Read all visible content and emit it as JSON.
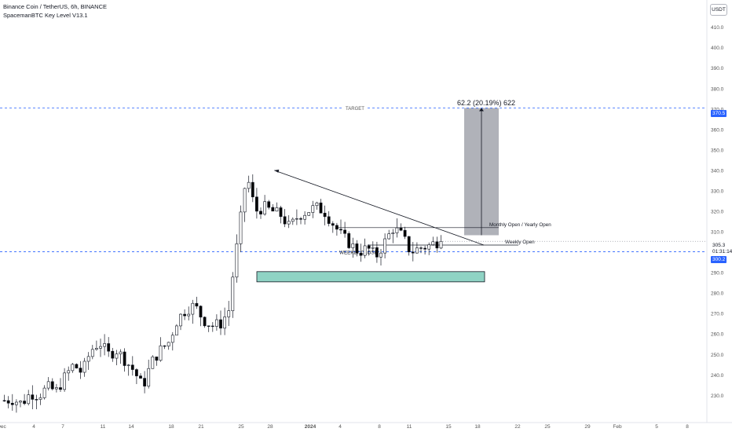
{
  "legend": {
    "title": "Binance Coin / TetherUS, 6h, BINANCE",
    "indicator": "SpacemanBTC Key Level V13.1"
  },
  "currency_button": "USDT",
  "price_labels": {
    "current_price": "305.3",
    "countdown": "01:31:14",
    "target": "370.5",
    "blue_line": "300.2"
  },
  "annotations": {
    "target": "TARGET",
    "weekly_close": "WEEKLY CLOSE",
    "monthly_yearly_open": "Monthly Open / Yearly Open",
    "weekly_open": "Weekly Open",
    "measure": "62.2 (20.19%) 622"
  },
  "colors": {
    "up_candle": "#ffffff",
    "down_candle": "#000000",
    "target_line": "#2962ff",
    "support_zone": "#8fd3c4",
    "projection_box": "#9598a1",
    "label_blue": "#2962ff"
  },
  "chart_data": {
    "type": "candlestick",
    "symbol": "BNBUSDT",
    "interval": "6h",
    "y_ticks": [
      230,
      240,
      250,
      260,
      270,
      280,
      290,
      300,
      310,
      320,
      330,
      340,
      350,
      360,
      370,
      380,
      390,
      400,
      410
    ],
    "x_ticks": [
      "Dec",
      "4",
      "7",
      "11",
      "14",
      "18",
      "21",
      "25",
      "28",
      "2024",
      "4",
      "8",
      "11",
      "15",
      "18",
      "22",
      "25",
      "29",
      "Feb",
      "5",
      "8"
    ],
    "ylim": [
      221,
      421
    ],
    "series_path": [
      [
        0,
        227.5
      ],
      [
        2,
        228
      ],
      [
        4,
        226
      ],
      [
        6,
        231
      ],
      [
        8,
        230
      ],
      [
        10,
        234
      ],
      [
        12,
        232
      ],
      [
        14,
        239
      ],
      [
        16,
        245
      ],
      [
        18,
        241
      ],
      [
        20,
        252
      ],
      [
        22,
        256
      ],
      [
        24,
        250
      ],
      [
        26,
        252
      ],
      [
        28,
        247
      ],
      [
        30,
        242
      ],
      [
        32,
        234
      ],
      [
        34,
        246
      ],
      [
        36,
        252
      ],
      [
        38,
        256
      ],
      [
        40,
        267
      ],
      [
        42,
        272
      ],
      [
        44,
        274
      ],
      [
        46,
        267
      ],
      [
        48,
        264
      ],
      [
        50,
        265
      ],
      [
        52,
        272
      ],
      [
        53,
        292
      ],
      [
        54,
        306
      ],
      [
        55,
        322
      ],
      [
        56,
        338
      ],
      [
        57,
        330
      ],
      [
        58,
        320
      ],
      [
        60,
        322
      ],
      [
        62,
        320
      ],
      [
        64,
        318
      ],
      [
        66,
        312
      ],
      [
        68,
        318
      ],
      [
        70,
        320
      ],
      [
        72,
        322
      ],
      [
        74,
        320
      ],
      [
        76,
        314
      ],
      [
        78,
        308
      ],
      [
        80,
        304
      ],
      [
        82,
        300
      ],
      [
        84,
        302
      ],
      [
        86,
        298
      ],
      [
        88,
        305
      ],
      [
        90,
        312
      ],
      [
        92,
        308
      ],
      [
        94,
        300
      ],
      [
        96,
        302
      ],
      [
        98,
        303
      ],
      [
        100,
        305
      ],
      [
        101,
        305.3
      ]
    ],
    "current_price": 305.3,
    "levels": {
      "target": 370.5,
      "monthly_yearly_open": 312,
      "weekly_open": 303.5,
      "weekly_close": 300,
      "blue_line": 300.2
    },
    "support_zone": [
      285.5,
      290.5
    ],
    "projection": {
      "from": 308.3,
      "to": 370.5,
      "change": "62.2",
      "percent": "20.19%",
      "bars": "622"
    },
    "trendline": {
      "start": [
        53,
        340
      ],
      "end": [
        119,
        303.5
      ]
    }
  }
}
